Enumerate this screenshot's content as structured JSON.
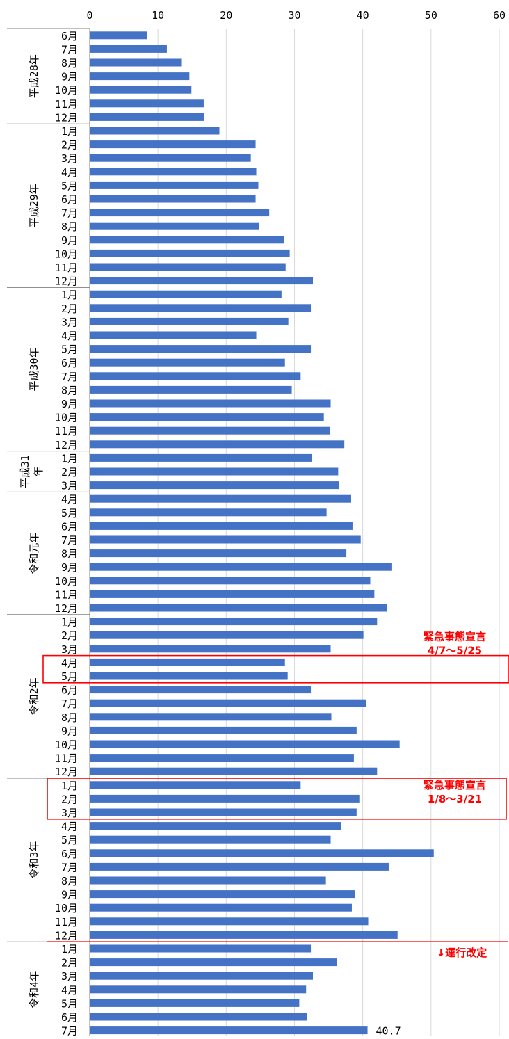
{
  "chart_data": {
    "type": "bar",
    "orientation": "horizontal",
    "xlim": [
      0,
      60
    ],
    "x_ticks": [
      "0",
      "10",
      "20",
      "30",
      "40",
      "50",
      "60"
    ],
    "grid": true,
    "colors": {
      "bar": "#4472C4",
      "grid": "#D9D9D9",
      "axis": "#808080",
      "highlight": "#FF0000",
      "text": "#000000"
    },
    "groups": [
      {
        "label": "平成28年",
        "months": [
          "6月",
          "7月",
          "8月",
          "9月",
          "10月",
          "11月",
          "12月"
        ],
        "values": [
          8.4,
          11.3,
          13.5,
          14.6,
          14.9,
          16.7,
          16.8
        ]
      },
      {
        "label": "平成29年",
        "months": [
          "1月",
          "2月",
          "3月",
          "4月",
          "5月",
          "6月",
          "7月",
          "8月",
          "9月",
          "10月",
          "11月",
          "12月"
        ],
        "values": [
          19.0,
          24.3,
          23.6,
          24.4,
          24.7,
          24.3,
          26.3,
          24.8,
          28.5,
          29.3,
          28.7,
          32.7
        ]
      },
      {
        "label": "平成30年",
        "months": [
          "1月",
          "2月",
          "3月",
          "4月",
          "5月",
          "6月",
          "7月",
          "8月",
          "9月",
          "10月",
          "11月",
          "12月"
        ],
        "values": [
          28.1,
          32.4,
          29.1,
          24.4,
          32.4,
          28.6,
          30.9,
          29.6,
          35.3,
          34.3,
          35.2,
          37.3
        ]
      },
      {
        "label": "平成31年",
        "months": [
          "1月",
          "2月",
          "3月"
        ],
        "values": [
          32.6,
          36.4,
          36.5
        ]
      },
      {
        "label": "令和元年",
        "months": [
          "4月",
          "5月",
          "6月",
          "7月",
          "8月",
          "9月",
          "10月",
          "11月",
          "12月"
        ],
        "values": [
          38.3,
          34.7,
          38.5,
          39.7,
          37.6,
          44.3,
          41.1,
          41.7,
          43.6
        ]
      },
      {
        "label": "令和2年",
        "months": [
          "1月",
          "2月",
          "3月",
          "4月",
          "5月",
          "6月",
          "7月",
          "8月",
          "9月",
          "10月",
          "11月",
          "12月"
        ],
        "values": [
          42.1,
          40.1,
          35.3,
          28.6,
          29.0,
          32.4,
          40.5,
          35.4,
          39.1,
          45.4,
          38.7,
          42.1
        ]
      },
      {
        "label": "令和3年",
        "months": [
          "1月",
          "2月",
          "3月",
          "4月",
          "5月",
          "6月",
          "7月",
          "8月",
          "9月",
          "10月",
          "11月",
          "12月"
        ],
        "values": [
          30.9,
          39.6,
          39.1,
          36.8,
          35.3,
          50.4,
          43.8,
          34.6,
          38.9,
          38.4,
          40.8,
          45.1
        ]
      },
      {
        "label": "令和4年",
        "months": [
          "1月",
          "2月",
          "3月",
          "4月",
          "5月",
          "6月",
          "7月"
        ],
        "values": [
          32.4,
          36.2,
          32.7,
          31.7,
          30.7,
          31.8,
          40.7
        ]
      }
    ],
    "data_labels": [
      {
        "group": 7,
        "month": 6,
        "text": "40.7"
      }
    ],
    "annotations": [
      {
        "lines": [
          "緊急事態宣言",
          "4/7～5/25"
        ],
        "group": 5,
        "months": [
          3,
          4
        ],
        "type": "box"
      },
      {
        "lines": [
          "緊急事態宣言",
          "1/8～3/21"
        ],
        "group": 6,
        "months": [
          0,
          2
        ],
        "type": "box"
      },
      {
        "lines": [
          "↓運行改定"
        ],
        "group": 7,
        "months": [
          0,
          0
        ],
        "type": "line"
      }
    ]
  }
}
